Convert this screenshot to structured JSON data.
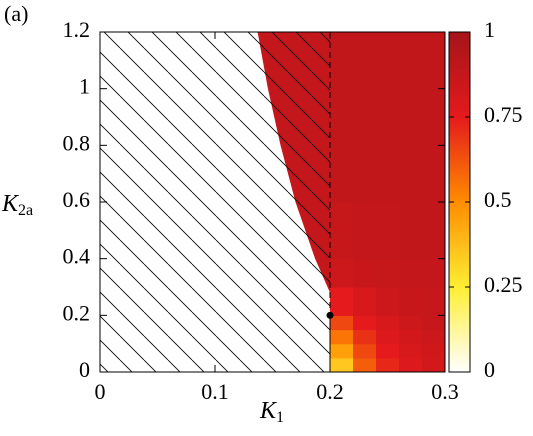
{
  "chart_data": {
    "type": "heatmap",
    "panel": "(a)",
    "xlabel": {
      "main": "K",
      "sub": "1"
    },
    "ylabel": {
      "main": "K",
      "sub": "2a"
    },
    "xlim": [
      0,
      0.3
    ],
    "ylim": [
      0,
      1.2
    ],
    "xticks": [
      0,
      0.1,
      0.2,
      0.3
    ],
    "yticks": [
      0,
      0.2,
      0.4,
      0.6,
      0.8,
      1,
      1.2
    ],
    "clim": [
      0,
      1
    ],
    "cticks": [
      0,
      0.25,
      0.5,
      0.75,
      1
    ],
    "colormap": [
      "#ffffff",
      "#ffee33",
      "#ff8c00",
      "#e41a1c",
      "#a5141a"
    ],
    "xbins": [
      0.2,
      0.22,
      0.24,
      0.26,
      0.28,
      0.3
    ],
    "ybins": [
      0,
      0.05,
      0.1,
      0.15,
      0.2,
      0.3,
      0.4,
      0.6,
      0.8,
      1,
      1.2
    ],
    "z": [
      [
        0.35,
        0.6,
        0.72,
        0.78,
        0.82
      ],
      [
        0.45,
        0.65,
        0.75,
        0.8,
        0.83
      ],
      [
        0.55,
        0.7,
        0.78,
        0.82,
        0.85
      ],
      [
        0.65,
        0.75,
        0.8,
        0.84,
        0.86
      ],
      [
        0.75,
        0.8,
        0.84,
        0.86,
        0.87
      ],
      [
        0.84,
        0.86,
        0.87,
        0.88,
        0.88
      ],
      [
        0.87,
        0.88,
        0.88,
        0.89,
        0.89
      ],
      [
        0.89,
        0.89,
        0.89,
        0.89,
        0.89
      ],
      [
        0.89,
        0.89,
        0.89,
        0.89,
        0.89
      ],
      [
        0.89,
        0.89,
        0.89,
        0.89,
        0.89
      ]
    ],
    "wedge": {
      "value": 0.88,
      "x": [
        0.137,
        0.146,
        0.157,
        0.17,
        0.187,
        0.2,
        0.2
      ],
      "y": [
        1.2,
        1,
        0.8,
        0.6,
        0.4,
        0.28,
        1.2
      ]
    },
    "point": {
      "x": 0.2,
      "y": 0.2
    }
  }
}
